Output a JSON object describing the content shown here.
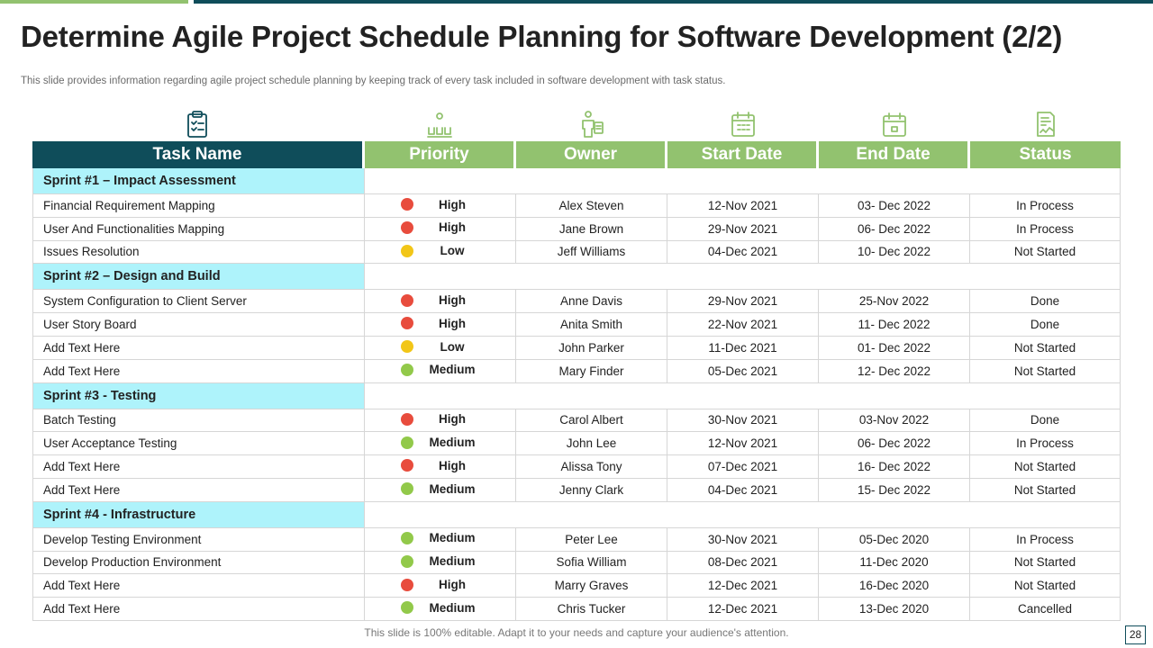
{
  "title": "Determine Agile Project Schedule Planning for Software Development (2/2)",
  "subtitle": "This slide provides information regarding agile project schedule planning by keeping track of every  task included in software development with task status.",
  "colors": {
    "teal": "#0f4d5a",
    "green": "#92c26f",
    "sprint_bg": "#aef3fb",
    "priority_high": "#e84c3d",
    "priority_low": "#f2c618",
    "priority_medium": "#92c94a"
  },
  "columns": {
    "task": "Task Name",
    "priority": "Priority",
    "owner": "Owner",
    "start": "Start Date",
    "end": "End Date",
    "status": "Status"
  },
  "column_icons": [
    "clipboard-icon",
    "team-icon",
    "owner-icon",
    "calendar-icon",
    "calendar-end-icon",
    "status-report-icon"
  ],
  "sprints": [
    {
      "name": "Sprint #1 – Impact Assessment",
      "tasks": [
        {
          "task": "Financial Requirement  Mapping",
          "priority": "High",
          "owner": "Alex Steven",
          "start": "12-Nov  2021",
          "end": "03- Dec 2022",
          "status": "In Process"
        },
        {
          "task": "User And Functionalities Mapping",
          "priority": "High",
          "owner": "Jane Brown",
          "start": "29-Nov  2021",
          "end": "06- Dec 2022",
          "status": "In Process"
        },
        {
          "task": "Issues Resolution",
          "priority": "Low",
          "owner": "Jeff Williams",
          "start": "04-Dec 2021",
          "end": "10- Dec 2022",
          "status": "Not Started"
        }
      ]
    },
    {
      "name": "Sprint #2 – Design and Build",
      "tasks": [
        {
          "task": "System Configuration  to Client Server",
          "priority": "High",
          "owner": "Anne Davis",
          "start": "29-Nov  2021",
          "end": "25-Nov  2022",
          "status": "Done"
        },
        {
          "task": "User Story Board",
          "priority": "High",
          "owner": "Anita Smith",
          "start": "22-Nov  2021",
          "end": "11- Dec 2022",
          "status": "Done"
        },
        {
          "task": "Add Text Here",
          "priority": "Low",
          "owner": "John Parker",
          "start": "11-Dec 2021",
          "end": "01- Dec 2022",
          "status": "Not Started"
        },
        {
          "task": "Add Text Here",
          "priority": "Medium",
          "owner": "Mary Finder",
          "start": "05-Dec 2021",
          "end": "12- Dec 2022",
          "status": "Not Started"
        }
      ]
    },
    {
      "name": "Sprint #3 - Testing",
      "tasks": [
        {
          "task": "Batch Testing",
          "priority": "High",
          "owner": "Carol Albert",
          "start": "30-Nov  2021",
          "end": "03-Nov  2022",
          "status": "Done"
        },
        {
          "task": "User Acceptance Testing",
          "priority": "Medium",
          "owner": "John Lee",
          "start": "12-Nov  2021",
          "end": "06- Dec 2022",
          "status": "In Process"
        },
        {
          "task": "Add Text Here",
          "priority": "High",
          "owner": "Alissa Tony",
          "start": "07-Dec 2021",
          "end": "16- Dec 2022",
          "status": "Not Started"
        },
        {
          "task": "Add Text Here",
          "priority": "Medium",
          "owner": "Jenny Clark",
          "start": "04-Dec 2021",
          "end": "15- Dec 2022",
          "status": "Not Started"
        }
      ]
    },
    {
      "name": "Sprint #4 - Infrastructure",
      "tasks": [
        {
          "task": "Develop  Testing Environment",
          "priority": "Medium",
          "owner": "Peter Lee",
          "start": "30-Nov  2021",
          "end": "05-Dec 2020",
          "status": "In Process"
        },
        {
          "task": "Develop  Production Environment",
          "priority": "Medium",
          "owner": "Sofia William",
          "start": "08-Dec 2021",
          "end": "11-Dec 2020",
          "status": "Not Started"
        },
        {
          "task": "Add Text Here",
          "priority": "High",
          "owner": "Marry Graves",
          "start": "12-Dec 2021",
          "end": "16-Dec 2020",
          "status": "Not Started"
        },
        {
          "task": "Add Text Here",
          "priority": "Medium",
          "owner": "Chris Tucker",
          "start": "12-Dec 2021",
          "end": "13-Dec 2020",
          "status": "Cancelled"
        }
      ]
    }
  ],
  "footer": "This slide is 100% editable. Adapt it to your needs and capture your audience's attention.",
  "page_number": "28"
}
